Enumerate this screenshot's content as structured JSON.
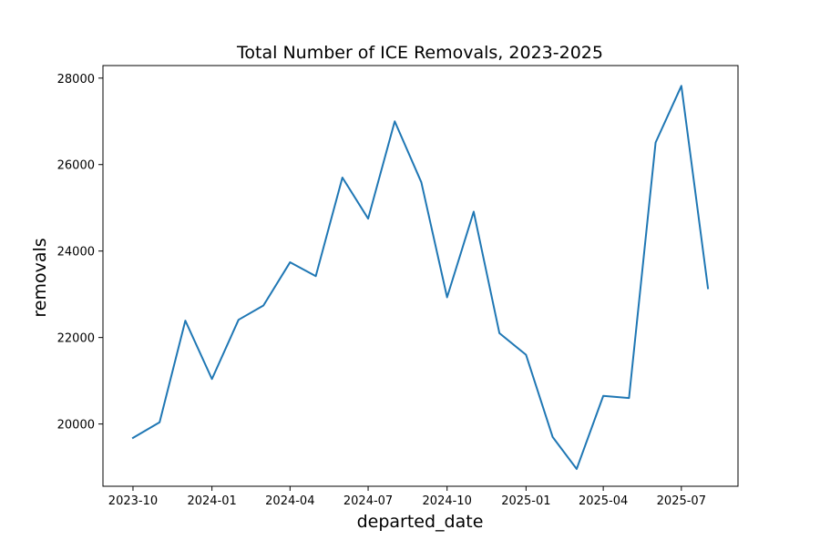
{
  "chart_data": {
    "type": "line",
    "title": "Total Number of ICE Removals, 2023-2025",
    "xlabel": "departed_date",
    "ylabel": "removals",
    "x": [
      "2023-10-01",
      "2023-11-01",
      "2023-12-01",
      "2024-01-01",
      "2024-02-01",
      "2024-03-01",
      "2024-04-01",
      "2024-05-01",
      "2024-06-01",
      "2024-07-01",
      "2024-08-01",
      "2024-09-01",
      "2024-10-01",
      "2024-11-01",
      "2024-12-01",
      "2025-01-01",
      "2025-02-01",
      "2025-03-01",
      "2025-04-01",
      "2025-05-01",
      "2025-06-01",
      "2025-07-01",
      "2025-08-01"
    ],
    "series": [
      {
        "color": "#1f77b4",
        "values": [
          19680,
          20040,
          22390,
          21040,
          22410,
          22740,
          23740,
          23420,
          25700,
          24750,
          27000,
          25590,
          22930,
          24910,
          22100,
          21600,
          19700,
          18960,
          20650,
          20600,
          26510,
          27820,
          23140
        ]
      }
    ],
    "xlim": [
      "2023-08-27",
      "2025-09-05"
    ],
    "ylim": [
      18560,
      28290
    ],
    "xticks": [
      "2023-10",
      "2024-01",
      "2024-04",
      "2024-07",
      "2024-10",
      "2025-01",
      "2025-04",
      "2025-07"
    ],
    "yticks": [
      20000,
      22000,
      24000,
      26000,
      28000
    ],
    "grid": false,
    "legend": "none"
  }
}
